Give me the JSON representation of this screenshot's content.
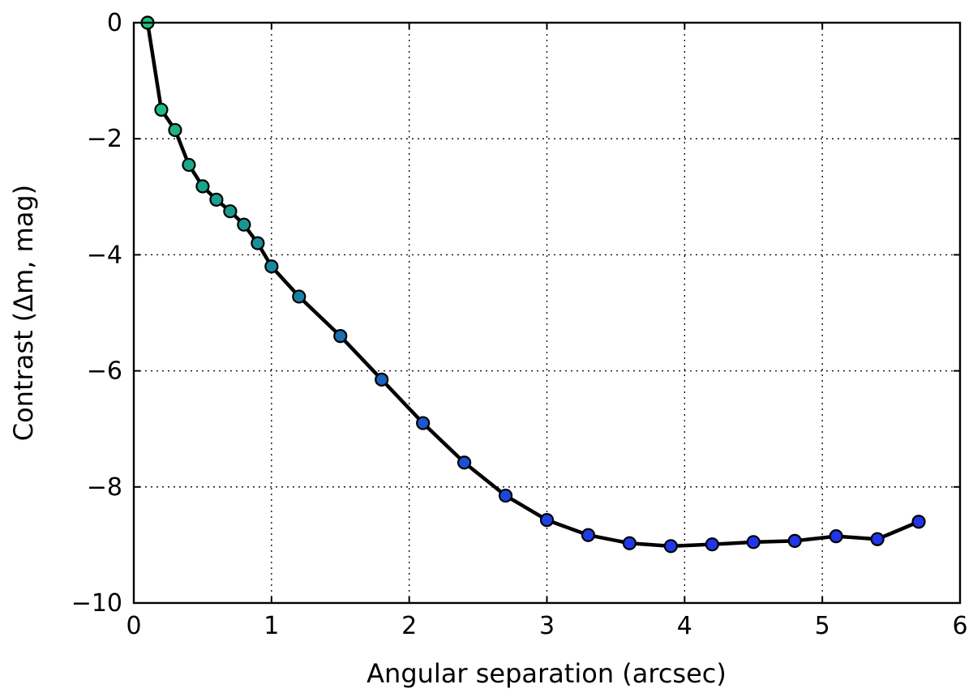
{
  "chart_data": {
    "type": "line",
    "title": "",
    "xlabel": "Angular separation (arcsec)",
    "ylabel": "Contrast (Δm, mag)",
    "xlim": [
      0,
      6
    ],
    "ylim": [
      -10,
      0
    ],
    "xticks": [
      0,
      1,
      2,
      3,
      4,
      5,
      6
    ],
    "yticks": [
      0,
      -2,
      -4,
      -6,
      -8,
      -10
    ],
    "xtick_labels": [
      "0",
      "1",
      "2",
      "3",
      "4",
      "5",
      "6"
    ],
    "ytick_labels": [
      "0",
      "−2",
      "−4",
      "−6",
      "−8",
      "−10"
    ],
    "grid": true,
    "legend": "none",
    "series": [
      {
        "x": [
          0.1,
          0.2,
          0.3,
          0.4,
          0.5,
          0.6,
          0.7,
          0.8,
          0.9,
          1.0,
          1.2,
          1.5,
          1.8,
          2.1,
          2.4,
          2.7,
          3.0,
          3.3,
          3.6,
          3.9,
          4.2,
          4.5,
          4.8,
          5.1,
          5.4,
          5.7
        ],
        "y": [
          0.0,
          -1.5,
          -1.85,
          -2.45,
          -2.82,
          -3.05,
          -3.25,
          -3.48,
          -3.8,
          -4.2,
          -4.72,
          -5.4,
          -6.15,
          -6.9,
          -7.58,
          -8.15,
          -8.57,
          -8.83,
          -8.97,
          -9.02,
          -8.99,
          -8.95,
          -8.93,
          -8.85,
          -8.9,
          -8.6
        ]
      }
    ],
    "line_color": "#000000",
    "marker_colors": [
      "#20c080",
      "#1fbc84",
      "#1db387",
      "#1aa98b",
      "#19a48d",
      "#199f90",
      "#1a9b92",
      "#1a9696",
      "#198f99",
      "#18889d",
      "#1a80a5",
      "#1a70b3",
      "#1a62c0",
      "#1b58cb",
      "#1c4fd4",
      "#1d48dc",
      "#1e42e2",
      "#1f3de6",
      "#1f3ae8",
      "#2038ea",
      "#2036ea",
      "#2136eb",
      "#2135eb",
      "#2135eb",
      "#2134ec",
      "#2134ec"
    ]
  }
}
